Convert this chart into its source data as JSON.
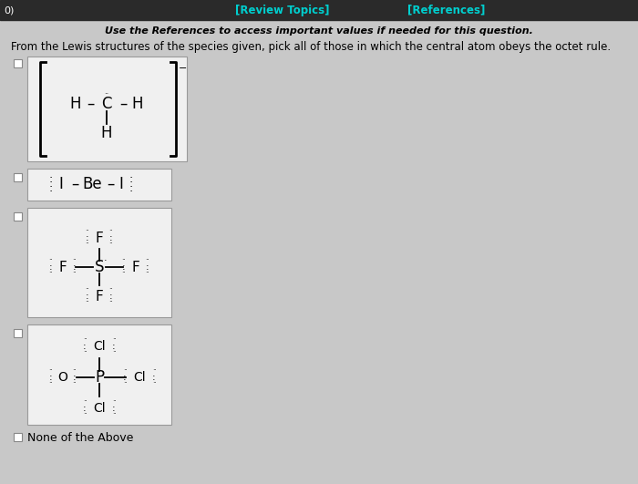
{
  "background_color": "#c8c8c8",
  "header_bg": "#2a2a2a",
  "title": "[Review Topics]",
  "references": "[References]",
  "question_number": "0)",
  "subtitle": "Use the References to access important values if needed for this question.",
  "main_question": "From the Lewis structures of the species given, pick all of those in which the central atom obeys the octet rule.",
  "none_of_above": "None of the Above",
  "box_bg": "#f0f0f0",
  "box_edge": "#999999"
}
